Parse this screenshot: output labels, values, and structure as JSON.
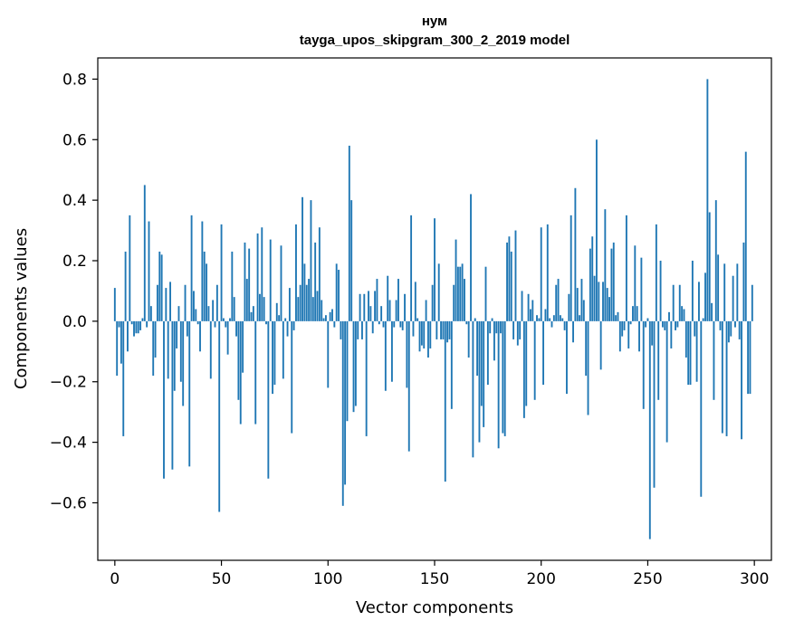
{
  "chart_data": {
    "type": "bar",
    "title": "нум",
    "subtitle": "tayga_upos_skipgram_300_2_2019 model",
    "xlabel": "Vector components",
    "ylabel": "Components values",
    "xlim": [
      -8,
      308
    ],
    "ylim": [
      -0.79,
      0.87
    ],
    "xticks": [
      0,
      50,
      100,
      150,
      200,
      250,
      300
    ],
    "xtick_labels": [
      "0",
      "50",
      "100",
      "150",
      "200",
      "250",
      "300"
    ],
    "yticks": [
      -0.6,
      -0.4,
      -0.2,
      0.0,
      0.2,
      0.4,
      0.6,
      0.8
    ],
    "ytick_labels": [
      "−0.6",
      "−0.4",
      "−0.2",
      "0.0",
      "0.2",
      "0.4",
      "0.6",
      "0.8"
    ],
    "bar_color": "#1f77b4",
    "x": "0..299",
    "values": [
      0.11,
      -0.18,
      -0.02,
      -0.14,
      -0.38,
      0.23,
      -0.1,
      0.35,
      -0.01,
      -0.05,
      -0.04,
      -0.04,
      -0.03,
      0.01,
      0.45,
      -0.02,
      0.33,
      0.05,
      -0.18,
      -0.12,
      0.12,
      0.23,
      0.22,
      -0.52,
      0.11,
      -0.19,
      0.13,
      -0.49,
      -0.23,
      -0.09,
      0.05,
      -0.2,
      -0.28,
      0.12,
      -0.05,
      -0.48,
      0.35,
      0.1,
      0.04,
      -0.01,
      -0.1,
      0.33,
      0.23,
      0.19,
      0.05,
      -0.19,
      0.07,
      -0.02,
      0.12,
      -0.63,
      0.32,
      0.01,
      -0.02,
      -0.11,
      0.01,
      0.23,
      0.08,
      -0.05,
      -0.26,
      -0.34,
      -0.17,
      0.26,
      0.14,
      0.24,
      0.03,
      0.05,
      -0.34,
      0.29,
      0.09,
      0.31,
      0.08,
      -0.01,
      -0.52,
      0.27,
      -0.24,
      -0.21,
      0.06,
      0.02,
      0.25,
      -0.19,
      0.01,
      -0.05,
      0.11,
      -0.37,
      -0.03,
      0.32,
      0.08,
      0.12,
      0.41,
      0.19,
      0.12,
      0.14,
      0.4,
      0.08,
      0.26,
      0.1,
      0.31,
      0.07,
      0.01,
      0.02,
      -0.22,
      0.03,
      0.04,
      -0.02,
      0.19,
      0.17,
      -0.06,
      -0.61,
      -0.54,
      -0.33,
      0.58,
      0.4,
      -0.3,
      -0.28,
      -0.06,
      0.09,
      -0.06,
      0.09,
      -0.38,
      0.1,
      0.05,
      -0.04,
      0.1,
      0.14,
      -0.01,
      0.05,
      -0.02,
      -0.23,
      0.15,
      0.07,
      -0.2,
      -0.02,
      0.07,
      0.14,
      -0.02,
      -0.03,
      0.09,
      -0.22,
      -0.43,
      0.35,
      -0.05,
      0.13,
      0.01,
      -0.1,
      -0.08,
      -0.09,
      0.07,
      -0.12,
      -0.09,
      0.12,
      0.34,
      -0.06,
      0.19,
      -0.06,
      -0.06,
      -0.53,
      -0.07,
      -0.06,
      -0.29,
      0.12,
      0.27,
      0.18,
      0.18,
      0.19,
      0.14,
      -0.01,
      -0.12,
      0.42,
      -0.45,
      0.01,
      -0.18,
      -0.4,
      -0.28,
      -0.35,
      0.18,
      -0.21,
      -0.04,
      0.01,
      -0.13,
      -0.04,
      -0.42,
      -0.04,
      -0.37,
      -0.38,
      0.26,
      0.28,
      0.23,
      -0.06,
      0.3,
      -0.08,
      -0.06,
      0.1,
      -0.32,
      -0.28,
      0.09,
      0.04,
      0.07,
      -0.26,
      0.02,
      0.01,
      0.31,
      -0.21,
      0.04,
      0.32,
      0.01,
      -0.02,
      0.02,
      0.12,
      0.14,
      0.02,
      0.01,
      -0.03,
      -0.24,
      0.09,
      0.35,
      -0.07,
      0.44,
      0.11,
      0.02,
      0.14,
      0.07,
      -0.18,
      -0.31,
      0.24,
      0.28,
      0.15,
      0.6,
      0.13,
      -0.16,
      0.13,
      0.37,
      0.11,
      0.08,
      0.24,
      0.26,
      0.02,
      0.03,
      -0.1,
      -0.05,
      -0.03,
      0.35,
      -0.09,
      -0.01,
      0.05,
      0.25,
      0.05,
      -0.1,
      0.21,
      -0.29,
      -0.02,
      0.01,
      -0.72,
      -0.08,
      -0.55,
      0.32,
      -0.26,
      0.2,
      -0.02,
      -0.03,
      -0.4,
      0.03,
      -0.09,
      0.12,
      -0.03,
      -0.02,
      0.12,
      0.05,
      0.04,
      -0.12,
      -0.21,
      -0.21,
      0.2,
      -0.05,
      -0.2,
      0.13,
      -0.58,
      0.01,
      0.16,
      0.8,
      0.36,
      0.06,
      -0.26,
      0.4,
      0.22,
      -0.03,
      -0.37,
      0.19,
      -0.38,
      -0.07,
      -0.05,
      0.15,
      -0.02,
      0.19,
      -0.06,
      -0.39,
      0.26,
      0.56,
      -0.24,
      -0.24,
      0.12
    ]
  }
}
